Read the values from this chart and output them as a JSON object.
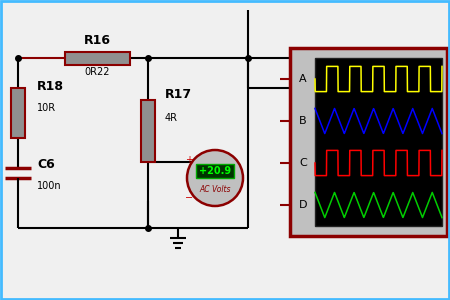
{
  "bg_color": "#f0f0f0",
  "wire_color": "#000000",
  "resistor_color": "#909090",
  "resistor_border": "#8b0000",
  "cap_color": "#8b0000",
  "scope_bg": "#000000",
  "scope_border": "#8b0000",
  "scope_panel_bg": "#c0c0c0",
  "voltmeter_color": "#c0c0c0",
  "voltmeter_border": "#8b0000",
  "green_display_bg": "#003300",
  "green_display_text": "#00ff00",
  "display_value": "+20.9",
  "display_label": "AC Volts",
  "r16_label": "R16",
  "r16_val": "0R22",
  "r18_label": "R18",
  "r18_val": "10R",
  "r17_label": "R17",
  "r17_val": "4R",
  "c6_label": "C6",
  "c6_val": "100n",
  "scope_labels": [
    "A",
    "B",
    "C",
    "D"
  ],
  "wave_colors": [
    "#ffff00",
    "#0000ff",
    "#ff0000",
    "#00cc00"
  ],
  "border_color": "#44bbff",
  "plus_minus_color": "#cc0000"
}
